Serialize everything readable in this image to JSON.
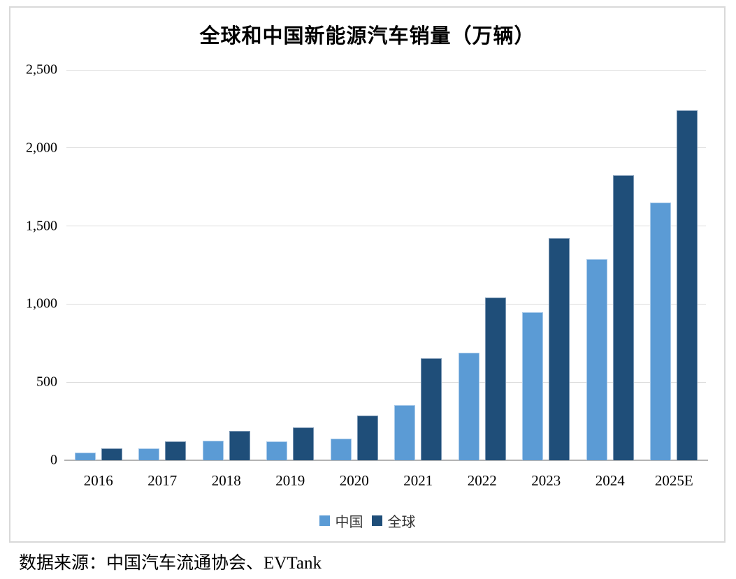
{
  "page": {
    "source_note": "数据来源：中国汽车流通协会、EVTank"
  },
  "chart_data": {
    "type": "bar",
    "title": "全球和中国新能源汽车销量（万辆）",
    "unit": "万辆",
    "categories": [
      "2016",
      "2017",
      "2018",
      "2019",
      "2020",
      "2021",
      "2022",
      "2023",
      "2024",
      "2025E"
    ],
    "series": [
      {
        "name": "中国",
        "key": "china",
        "color": "#5B9BD5",
        "edge_color": "#A9CAEA",
        "values": [
          51,
          78,
          126,
          120,
          137,
          352,
          689,
          950,
          1287,
          1650
        ]
      },
      {
        "name": "全球",
        "key": "global",
        "color": "#1F4E79",
        "edge_color": "#7A96B3",
        "values": [
          78,
          122,
          190,
          212,
          285,
          655,
          1040,
          1420,
          1825,
          2240
        ]
      }
    ],
    "ylim": [
      0,
      2500
    ],
    "yticks": [
      0,
      500,
      1000,
      1500,
      2000,
      2500
    ],
    "ytick_labels": [
      "0",
      "500",
      "1,000",
      "1,500",
      "2,000",
      "2,500"
    ],
    "grid": true,
    "legend_position": "bottom"
  },
  "colors": {
    "gridline": "#DCDCDC",
    "axis_line": "#B3B3B3",
    "chart_border": "#D9D9D9",
    "text": "#000000",
    "legend_text": "#333333"
  }
}
